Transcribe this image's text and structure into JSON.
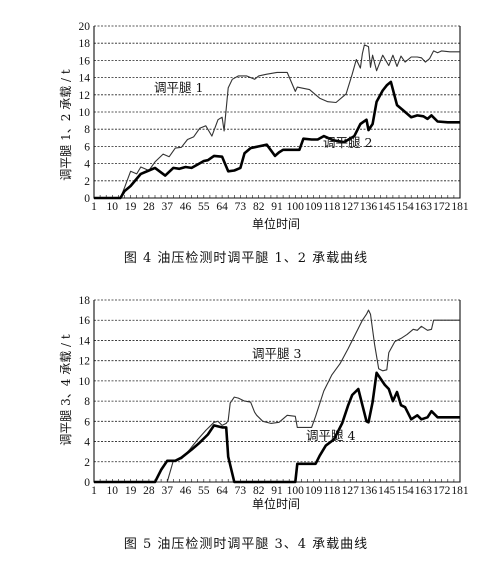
{
  "chart_data": [
    {
      "type": "line",
      "caption": "图 4    油压检测时调平腿 1、2 承载曲线",
      "xlabel": "单位时间",
      "ylabel": "调平腿 1、2 承载 / t",
      "ylim": [
        0,
        20
      ],
      "yticks": [
        0,
        2,
        4,
        6,
        8,
        10,
        12,
        14,
        16,
        18,
        20
      ],
      "xlim": [
        1,
        181
      ],
      "xticks": [
        1,
        10,
        19,
        28,
        37,
        46,
        55,
        64,
        73,
        82,
        91,
        100,
        109,
        118,
        127,
        136,
        145,
        154,
        163,
        172,
        181
      ],
      "grid": true,
      "series": [
        {
          "name": "调平腿 1",
          "annotation": "调平腿 1",
          "stroke": "thin",
          "x": [
            1,
            14,
            16,
            19,
            22,
            24,
            28,
            31,
            35,
            38,
            41,
            44,
            47,
            50,
            53,
            56,
            59,
            62,
            64,
            65,
            67,
            69,
            72,
            76,
            80,
            82,
            86,
            91,
            96,
            100,
            101,
            103,
            107,
            112,
            116,
            120,
            125,
            128,
            130,
            132,
            133,
            134,
            136,
            137,
            138,
            140,
            143,
            146,
            148,
            150,
            152,
            154,
            157,
            160,
            162,
            164,
            166,
            168,
            170,
            172,
            176,
            181
          ],
          "y": [
            0,
            0,
            1.2,
            3.1,
            2.8,
            3.6,
            3.2,
            4.2,
            5.1,
            4.8,
            5.8,
            5.9,
            6.8,
            7.1,
            8.1,
            8.4,
            7.2,
            9.1,
            9.4,
            7.8,
            12.8,
            13.8,
            14.2,
            14.2,
            13.8,
            14.2,
            14.4,
            14.6,
            14.6,
            12.4,
            12.9,
            12.8,
            12.6,
            11.6,
            11.2,
            11.1,
            12.1,
            14.4,
            16.1,
            15.1,
            16.8,
            17.8,
            17.6,
            15.2,
            16.6,
            14.8,
            16.6,
            15.4,
            16.6,
            15.3,
            16.5,
            15.8,
            16.4,
            16.4,
            16.3,
            15.8,
            16.2,
            17.1,
            16.9,
            17.1,
            17.0,
            17.0
          ]
        },
        {
          "name": "调平腿 2",
          "annotation": "调平腿 2",
          "stroke": "thick",
          "x": [
            1,
            14,
            16,
            19,
            24,
            28,
            31,
            36,
            40,
            43,
            46,
            49,
            52,
            55,
            57,
            60,
            64,
            67,
            70,
            73,
            75,
            78,
            82,
            86,
            90,
            92,
            94,
            99,
            102,
            104,
            108,
            111,
            114,
            119,
            124,
            129,
            132,
            135,
            136,
            138,
            140,
            143,
            145,
            147,
            150,
            153,
            157,
            160,
            163,
            165,
            167,
            170,
            175,
            181
          ],
          "y": [
            0,
            0,
            0.8,
            1.4,
            2.8,
            3.2,
            3.5,
            2.6,
            3.5,
            3.4,
            3.6,
            3.5,
            3.9,
            4.3,
            4.4,
            4.9,
            4.8,
            3.1,
            3.2,
            3.5,
            5.2,
            5.8,
            6.0,
            6.2,
            4.9,
            5.3,
            5.6,
            5.6,
            5.6,
            6.9,
            6.8,
            6.8,
            7.2,
            6.7,
            6.5,
            7.2,
            8.6,
            9.1,
            7.9,
            8.6,
            11.2,
            12.5,
            13.1,
            13.5,
            10.8,
            10.2,
            9.4,
            9.6,
            9.5,
            9.2,
            9.6,
            8.9,
            8.8,
            8.8
          ]
        }
      ]
    },
    {
      "type": "line",
      "caption": "图 5    油压检测时调平腿 3、4 承载曲线",
      "xlabel": "单位时间",
      "ylabel": "调平腿 3、4 承载 / t",
      "ylim": [
        0,
        18
      ],
      "yticks": [
        0,
        2,
        4,
        6,
        8,
        10,
        12,
        14,
        16,
        18
      ],
      "xlim": [
        1,
        181
      ],
      "xticks": [
        1,
        10,
        19,
        28,
        37,
        46,
        55,
        64,
        73,
        82,
        91,
        100,
        109,
        118,
        127,
        136,
        145,
        154,
        163,
        172,
        181
      ],
      "grid": true,
      "series": [
        {
          "name": "调平腿 3",
          "annotation": "调平腿 3",
          "stroke": "thin",
          "x": [
            1,
            37,
            40,
            44,
            48,
            52,
            56,
            60,
            62,
            64,
            66,
            67,
            68,
            70,
            72,
            75,
            78,
            80,
            81,
            84,
            88,
            92,
            96,
            100,
            101,
            105,
            108,
            110,
            114,
            118,
            122,
            126,
            130,
            133,
            135,
            136,
            137,
            139,
            141,
            143,
            145,
            146,
            149,
            152,
            155,
            158,
            160,
            162,
            165,
            167,
            168,
            170,
            175,
            181
          ],
          "y": [
            0,
            0,
            2.1,
            2.3,
            3.2,
            4.2,
            5.1,
            5.9,
            6.0,
            5.6,
            5.8,
            6.1,
            7.8,
            8.4,
            8.3,
            8.0,
            7.9,
            6.9,
            6.6,
            6.0,
            5.8,
            5.9,
            6.6,
            6.5,
            5.4,
            5.4,
            5.4,
            6.5,
            9.0,
            10.6,
            11.7,
            13.2,
            14.8,
            16.0,
            16.6,
            17.0,
            16.6,
            13.6,
            11.2,
            11.0,
            11.1,
            12.8,
            13.9,
            14.2,
            14.6,
            15.1,
            15.0,
            15.4,
            15.0,
            15.1,
            16.0,
            16.0,
            16.0,
            16.0
          ]
        },
        {
          "name": "调平腿 4",
          "annotation": "调平腿 4",
          "stroke": "thick",
          "x": [
            1,
            31,
            34,
            37,
            41,
            44,
            49,
            53,
            57,
            60,
            64,
            66,
            67,
            70,
            100,
            101,
            103,
            106,
            110,
            112,
            115,
            119,
            123,
            126,
            128,
            131,
            133,
            135,
            136,
            138,
            140,
            142,
            144,
            146,
            148,
            150,
            152,
            154,
            157,
            160,
            162,
            165,
            167,
            170,
            175,
            181
          ],
          "y": [
            0,
            0,
            1.2,
            2.1,
            2.1,
            2.4,
            3.2,
            3.9,
            4.7,
            5.6,
            5.4,
            5.4,
            2.5,
            0,
            0,
            1.8,
            1.8,
            1.8,
            1.8,
            2.6,
            3.6,
            4.2,
            5.8,
            7.6,
            8.6,
            9.2,
            7.6,
            6.0,
            5.9,
            7.9,
            10.8,
            10.2,
            9.6,
            9.2,
            8.0,
            8.9,
            7.6,
            7.4,
            6.2,
            6.6,
            6.2,
            6.4,
            7.0,
            6.4,
            6.4,
            6.4
          ]
        }
      ]
    }
  ]
}
